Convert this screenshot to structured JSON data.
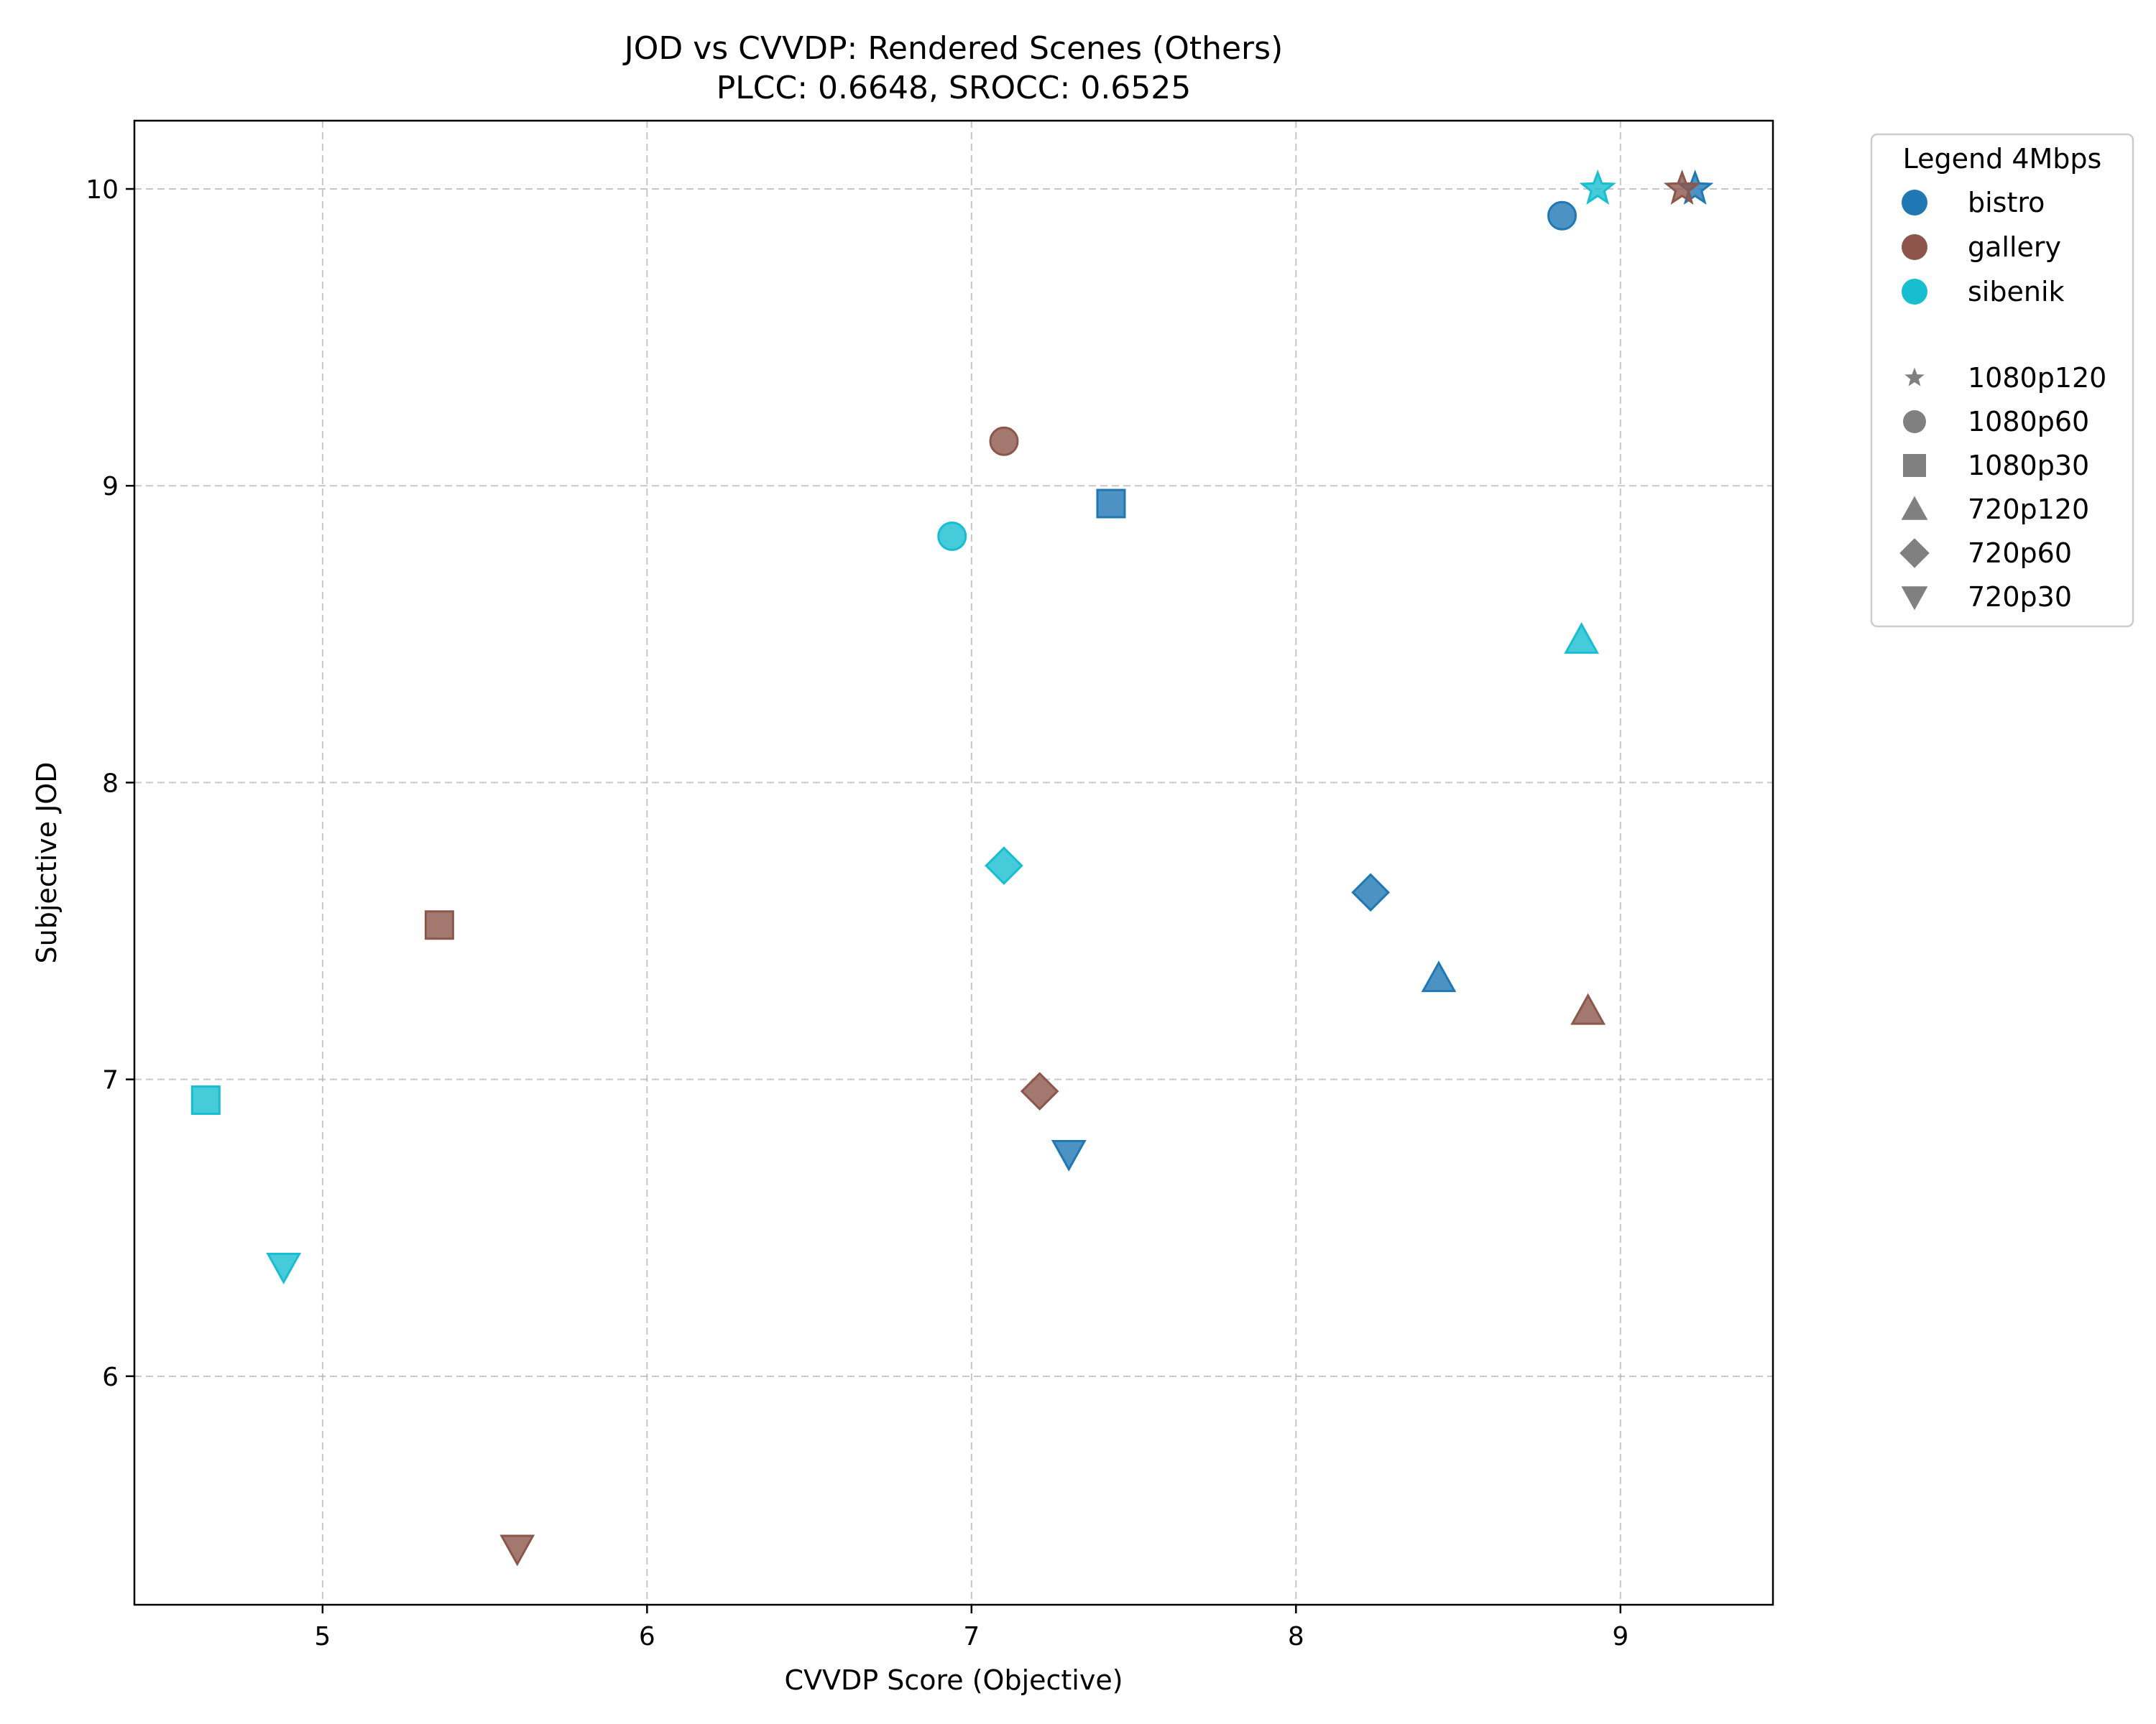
{
  "chart_data": {
    "type": "scatter",
    "title": "JOD vs CVVDP: Rendered Scenes (Others)",
    "subtitle": "PLCC: 0.6648, SROCC: 0.6525",
    "xlabel": "CVVDP Score (Objective)",
    "ylabel": "Subjective JOD",
    "xlim": [
      4.42,
      9.47
    ],
    "ylim": [
      5.23,
      10.23
    ],
    "xticks": [
      5,
      6,
      7,
      8,
      9
    ],
    "yticks": [
      6,
      7,
      8,
      9,
      10
    ],
    "grid": true,
    "legend_placement": "outside-right",
    "legend_title": "Legend 4Mbps",
    "scenes": [
      {
        "name": "bistro",
        "color": "#1f77b4"
      },
      {
        "name": "gallery",
        "color": "#8c564b"
      },
      {
        "name": "sibenik",
        "color": "#17becf"
      }
    ],
    "formats": [
      {
        "name": "1080p120",
        "marker": "star"
      },
      {
        "name": "1080p60",
        "marker": "circle"
      },
      {
        "name": "1080p30",
        "marker": "square"
      },
      {
        "name": "720p120",
        "marker": "triangle-up"
      },
      {
        "name": "720p60",
        "marker": "diamond"
      },
      {
        "name": "720p30",
        "marker": "triangle-down"
      }
    ],
    "points": [
      {
        "scene": "bistro",
        "format": "1080p120",
        "x": 9.23,
        "y": 10.0
      },
      {
        "scene": "bistro",
        "format": "1080p60",
        "x": 8.82,
        "y": 9.91
      },
      {
        "scene": "bistro",
        "format": "1080p30",
        "x": 7.43,
        "y": 8.94
      },
      {
        "scene": "bistro",
        "format": "720p120",
        "x": 8.44,
        "y": 7.34
      },
      {
        "scene": "bistro",
        "format": "720p60",
        "x": 8.23,
        "y": 7.63
      },
      {
        "scene": "bistro",
        "format": "720p30",
        "x": 7.3,
        "y": 6.75
      },
      {
        "scene": "gallery",
        "format": "1080p120",
        "x": 9.19,
        "y": 10.0
      },
      {
        "scene": "gallery",
        "format": "1080p60",
        "x": 7.1,
        "y": 9.15
      },
      {
        "scene": "gallery",
        "format": "1080p30",
        "x": 5.36,
        "y": 7.52
      },
      {
        "scene": "gallery",
        "format": "720p120",
        "x": 8.9,
        "y": 7.23
      },
      {
        "scene": "gallery",
        "format": "720p60",
        "x": 7.21,
        "y": 6.96
      },
      {
        "scene": "gallery",
        "format": "720p30",
        "x": 5.6,
        "y": 5.42
      },
      {
        "scene": "sibenik",
        "format": "1080p120",
        "x": 8.93,
        "y": 10.0
      },
      {
        "scene": "sibenik",
        "format": "1080p60",
        "x": 6.94,
        "y": 8.83
      },
      {
        "scene": "sibenik",
        "format": "1080p30",
        "x": 4.64,
        "y": 6.93
      },
      {
        "scene": "sibenik",
        "format": "720p120",
        "x": 8.88,
        "y": 8.48
      },
      {
        "scene": "sibenik",
        "format": "720p60",
        "x": 7.1,
        "y": 7.72
      },
      {
        "scene": "sibenik",
        "format": "720p30",
        "x": 4.88,
        "y": 6.37
      }
    ]
  }
}
